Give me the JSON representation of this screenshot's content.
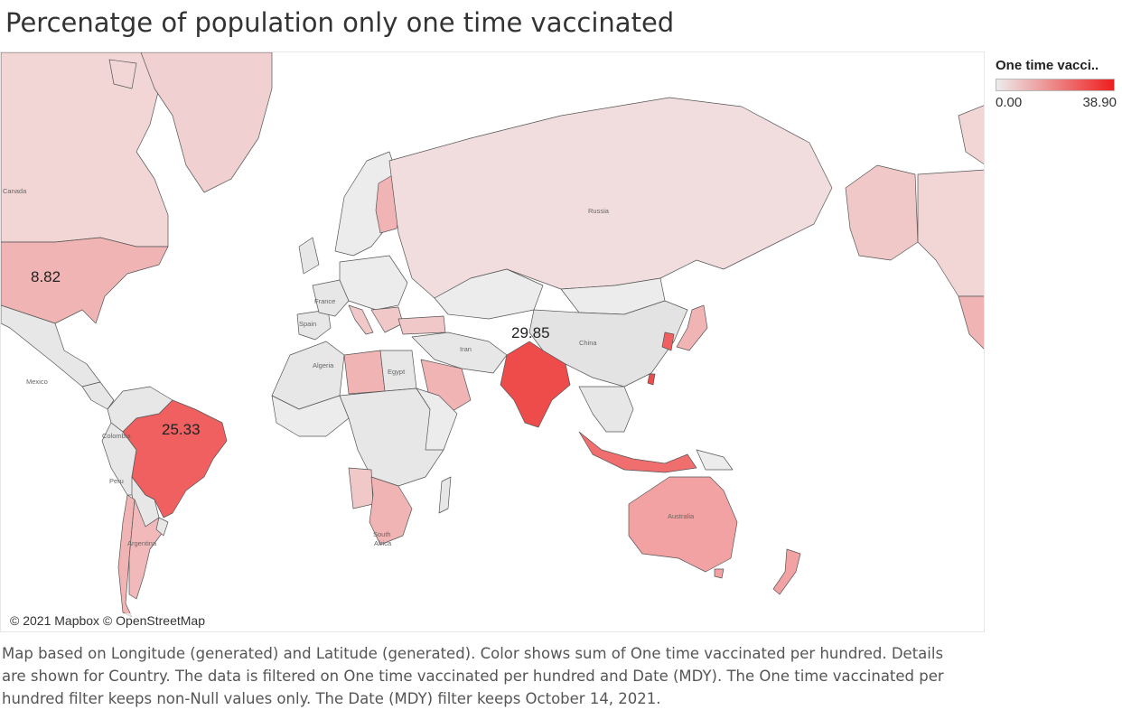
{
  "header": {
    "title": "Percenatge of population only one time vaccinated"
  },
  "legend": {
    "title": "One time vacci..",
    "min_label": "0.00",
    "max_label": "38.90",
    "color_low": "#ececec",
    "color_high": "#ee1e1e"
  },
  "map": {
    "attribution": "© 2021 Mapbox © OpenStreetMap",
    "place_labels": {
      "mexico": "Mexico",
      "colombia": "Colombia",
      "peru": "Peru",
      "algeria": "Algeria",
      "egypt": "Egypt",
      "iran": "Iran",
      "china": "China",
      "spain": "Spain",
      "france": "France",
      "south_africa_1": "South",
      "south_africa_2": "Africa",
      "australia": "Australia",
      "russia": "Russia",
      "canada": "Canada",
      "argentina": "Argentina"
    },
    "value_labels": {
      "usa": "8.82",
      "india": "29.85",
      "brazil": "25.33"
    }
  },
  "caption": "Map based on Longitude (generated) and Latitude (generated).  Color shows sum of One time vaccinated per hundred.  Details are shown for Country. The data is filtered on One time vaccinated per hundred and Date (MDY). The One time vaccinated per hundred filter keeps non-Null values only. The Date (MDY) filter keeps October 14, 2021."
}
